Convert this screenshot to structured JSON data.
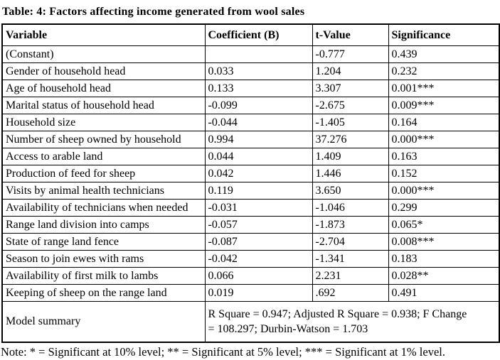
{
  "title": "Table: 4: Factors affecting income generated from wool sales",
  "table": {
    "headers": [
      "Variable",
      "Coefficient (B)",
      "t-Value",
      "Significance"
    ],
    "rows": [
      {
        "variable": "(Constant)",
        "coefficient": "",
        "t_value": "-0.777",
        "significance": "0.439"
      },
      {
        "variable": "Gender of household head",
        "coefficient": "0.033",
        "t_value": "1.204",
        "significance": "0.232"
      },
      {
        "variable": "Age of household head",
        "coefficient": "0.133",
        "t_value": "3.307",
        "significance": "0.001***"
      },
      {
        "variable": "Marital status of household head",
        "coefficient": "-0.099",
        "t_value": "-2.675",
        "significance": "0.009***"
      },
      {
        "variable": "Household size",
        "coefficient": "-0.044",
        "t_value": "-1.405",
        "significance": "0.164"
      },
      {
        "variable": "Number of sheep owned by household",
        "coefficient": "0.994",
        "t_value": "37.276",
        "significance": "0.000***"
      },
      {
        "variable": "Access to arable land",
        "coefficient": "0.044",
        "t_value": "1.409",
        "significance": "0.163"
      },
      {
        "variable": "Production of feed for sheep",
        "coefficient": "0.042",
        "t_value": "1.446",
        "significance": "0.152"
      },
      {
        "variable": "Visits by animal health technicians",
        "coefficient": "0.119",
        "t_value": "3.650",
        "significance": "0.000***"
      },
      {
        "variable": "Availability of technicians when needed",
        "coefficient": "-0.031",
        "t_value": "-1.046",
        "significance": "0.299"
      },
      {
        "variable": "Range land division into camps",
        "coefficient": "-0.057",
        "t_value": "-1.873",
        "significance": "0.065*"
      },
      {
        "variable": "State of range land fence",
        "coefficient": "-0.087",
        "t_value": "-2.704",
        "significance": "0.008***"
      },
      {
        "variable": "Season to join ewes with rams",
        "coefficient": "-0.042",
        "t_value": "-1.341",
        "significance": "0.183"
      },
      {
        "variable": "Availability of first milk to lambs",
        "coefficient": "0.066",
        "t_value": "2.231",
        "significance": "0.028**"
      },
      {
        "variable": "Keeping of sheep on the range land",
        "coefficient": "0.019",
        "t_value": ".692",
        "significance": "0.491"
      }
    ],
    "model_summary_label": "Model summary",
    "model_summary_text": "R Square = 0.947; Adjusted R Square = 0.938; F Change = 108.297; Durbin-Watson = 1.703"
  },
  "note": "Note: * = Significant at 10% level; ** = Significant at 5% level; *** = Significant at 1% level."
}
